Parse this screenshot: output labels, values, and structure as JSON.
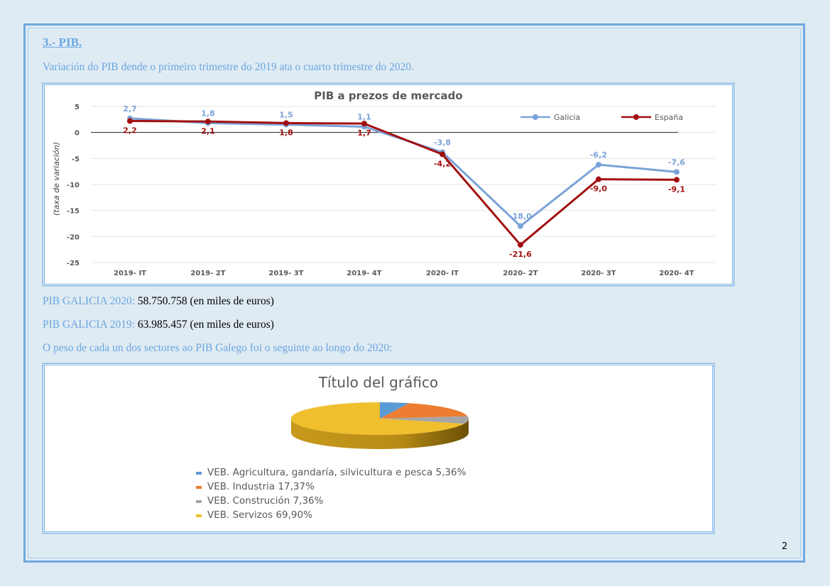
{
  "section": {
    "title": "3.- PIB.",
    "subtitle": "Variación do PIB dende o primeiro trimestre do 2019 ata o cuarto trimestre do 2020."
  },
  "gdp_figures": [
    {
      "label": "PIB GALICIA 2020:",
      "value": " 58.750.758 (en miles de euros)"
    },
    {
      "label": "PIB GALICIA 2019:",
      "value": "63.985.457 (en miles de euros)"
    }
  ],
  "sector_intro": "O peso de cada un dos sectores ao PIB Galego foi o seguinte ao longo do 2020:",
  "page_number": "2",
  "colors": {
    "galicia": "#7aa3d8",
    "espana": "#a30f0f",
    "agricultura": "#5b9bd5",
    "industria": "#ed7d31",
    "construcion": "#a5a5a5",
    "servizos": "#efbf2e",
    "accent": "#6aa6e0"
  },
  "chart_data": [
    {
      "type": "line",
      "title": "PIB a prezos de mercado",
      "xlabel": "",
      "ylabel": "(taxa de variación)",
      "categories": [
        "2019- IT",
        "2019- 2T",
        "2019- 3T",
        "2019- 4T",
        "2020- IT",
        "2020- 2T",
        "2020- 3T",
        "2020- 4T"
      ],
      "series": [
        {
          "name": "Galicia",
          "values": [
            2.7,
            1.8,
            1.5,
            1.1,
            -3.8,
            -18.0,
            -6.2,
            -7.6
          ],
          "labels": [
            "2,7",
            "1,8",
            "1,5",
            "1,1",
            "-3,8",
            "-18,0",
            "-6,2",
            "-7,6"
          ]
        },
        {
          "name": "España",
          "values": [
            2.2,
            2.1,
            1.8,
            1.7,
            -4.2,
            -21.6,
            -9.0,
            -9.1
          ],
          "labels": [
            "2,2",
            "2,1",
            "1,8",
            "1,7",
            "-4,2",
            "-21,6",
            "-9,0",
            "-9,1"
          ]
        }
      ],
      "yticks": [
        5,
        0,
        -5,
        -10,
        -15,
        -20,
        -25
      ],
      "ytick_labels": [
        "5",
        "0",
        "-5",
        "-10",
        "-15",
        "-20",
        "-25"
      ],
      "ylim": [
        -25,
        5
      ],
      "grid": true,
      "legend": "top-right"
    },
    {
      "type": "pie",
      "title": "Título del gráfico",
      "slices": [
        {
          "name": "VEB. Agricultura,  gandaría, silvicultura e pesca",
          "value": 5.36,
          "legend": "VEB. Agricultura,  gandaría, silvicultura e pesca 5,36%"
        },
        {
          "name": "VEB. Industria",
          "value": 17.37,
          "legend": "VEB. Industria 17,37%"
        },
        {
          "name": "VEB. Construción",
          "value": 7.36,
          "legend": "VEB. Construción 7,36%"
        },
        {
          "name": "VEB. Servizos",
          "value": 69.9,
          "legend": "VEB. Servizos 69,90%"
        }
      ],
      "legend": "bottom"
    }
  ]
}
